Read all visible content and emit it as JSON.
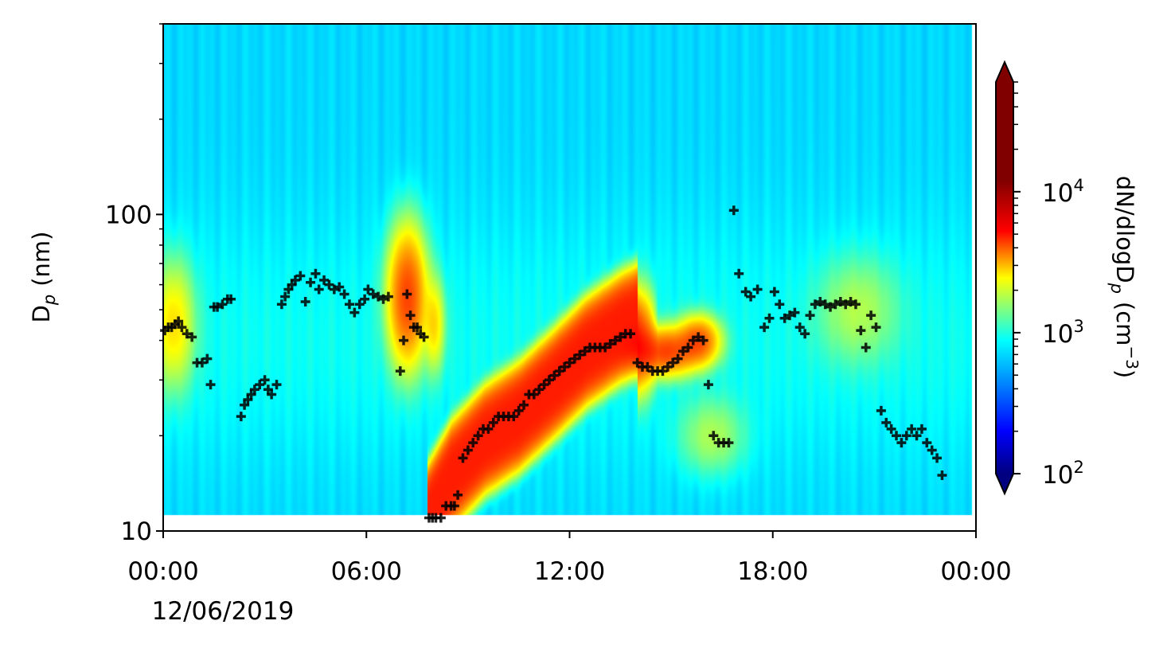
{
  "chart_data": {
    "type": "heatmap",
    "title": "",
    "xlabel": "",
    "ylabel": "D",
    "ylabel_sub": "p",
    "ylabel_unit": "(nm)",
    "y_scale": "log",
    "ylim": [
      10,
      400
    ],
    "xlim": [
      "2019-06-12T00:00",
      "2019-06-13T00:00"
    ],
    "x_ticks": [
      {
        "value": "2019-06-12T00:00",
        "label": "00:00"
      },
      {
        "value": "2019-06-12T06:00",
        "label": "06:00"
      },
      {
        "value": "2019-06-12T12:00",
        "label": "12:00"
      },
      {
        "value": "2019-06-12T18:00",
        "label": "18:00"
      },
      {
        "value": "2019-06-13T00:00",
        "label": "00:00"
      }
    ],
    "x_date_label": "12/06/2019",
    "y_ticks": [
      10,
      100
    ],
    "y_tick_labels": [
      "10",
      "100"
    ],
    "colorbar": {
      "label_main": "dN/dlogD",
      "label_sub": "p",
      "label_unit": "(cm",
      "label_exp": "−3",
      "label_close": ")",
      "scale": "log",
      "range": [
        100,
        60000
      ],
      "extend": "both",
      "colormap": "jet",
      "ticks": [
        {
          "value": 100,
          "base": "10",
          "exp": "2"
        },
        {
          "value": 1000,
          "base": "10",
          "exp": "3"
        },
        {
          "value": 10000,
          "base": "10",
          "exp": "4"
        }
      ]
    },
    "features": [
      {
        "desc": "background",
        "level": 1300
      },
      {
        "t": 0.3,
        "dp": 45,
        "st": 0.5,
        "sd": 0.16,
        "level": 9000
      },
      {
        "t": 7.2,
        "dp": 55,
        "st": 0.45,
        "sd": 0.17,
        "level": 30000
      },
      {
        "t": 8.0,
        "dp": 45,
        "st": 0.25,
        "sd": 0.12,
        "level": 9000
      },
      {
        "t": 14.8,
        "dp": 37,
        "st": 0.8,
        "sd": 0.06,
        "level": 30000
      },
      {
        "t": 15.8,
        "dp": 40,
        "st": 0.5,
        "sd": 0.06,
        "level": 25000
      },
      {
        "t": 20.5,
        "dp": 50,
        "st": 1.0,
        "sd": 0.14,
        "level": 3500
      },
      {
        "t": 16.2,
        "dp": 20,
        "st": 0.8,
        "sd": 0.1,
        "level": 3500
      }
    ],
    "banana": {
      "ridge": [
        [
          7.8,
          11
        ],
        [
          8.5,
          15
        ],
        [
          9.5,
          19.5
        ],
        [
          10.5,
          23
        ],
        [
          11.5,
          29
        ],
        [
          12.5,
          37
        ],
        [
          13.5,
          44
        ],
        [
          14,
          47
        ]
      ],
      "level": 40000
    },
    "mode_diameter_points": {
      "marker": "+",
      "color": "#000000",
      "x_unit": "hours since 2019-06-12 00:00",
      "y_unit": "nm",
      "x": [
        0.05,
        0.15,
        0.25,
        0.35,
        0.45,
        0.55,
        0.7,
        0.85,
        1.0,
        1.15,
        1.3,
        1.4,
        1.5,
        1.6,
        1.75,
        1.9,
        2.0,
        2.3,
        2.4,
        2.5,
        2.6,
        2.7,
        2.85,
        3.0,
        3.1,
        3.2,
        3.35,
        3.5,
        3.6,
        3.7,
        3.8,
        3.9,
        4.05,
        4.2,
        4.35,
        4.5,
        4.6,
        4.75,
        4.9,
        5.05,
        5.2,
        5.35,
        5.5,
        5.65,
        5.8,
        5.95,
        6.05,
        6.2,
        6.35,
        6.5,
        6.65,
        7.0,
        7.1,
        7.2,
        7.3,
        7.4,
        7.5,
        7.6,
        7.7,
        7.85,
        7.95,
        8.05,
        8.2,
        8.35,
        8.5,
        8.6,
        8.7,
        8.85,
        9.0,
        9.15,
        9.3,
        9.45,
        9.6,
        9.75,
        9.9,
        10.05,
        10.2,
        10.35,
        10.5,
        10.65,
        10.8,
        10.95,
        11.1,
        11.25,
        11.4,
        11.55,
        11.7,
        11.85,
        12.0,
        12.15,
        12.3,
        12.45,
        12.6,
        12.75,
        12.9,
        13.05,
        13.2,
        13.35,
        13.5,
        13.65,
        13.8,
        14.0,
        14.15,
        14.3,
        14.45,
        14.6,
        14.75,
        14.9,
        15.05,
        15.2,
        15.35,
        15.5,
        15.65,
        15.8,
        15.95,
        16.1,
        16.25,
        16.4,
        16.55,
        16.7,
        16.85,
        17.0,
        17.2,
        17.35,
        17.55,
        17.75,
        17.9,
        18.05,
        18.2,
        18.35,
        18.5,
        18.65,
        18.8,
        18.95,
        19.1,
        19.25,
        19.4,
        19.55,
        19.7,
        19.85,
        20.0,
        20.15,
        20.3,
        20.45,
        20.6,
        20.75,
        20.9,
        21.05,
        21.2,
        21.35,
        21.5,
        21.65,
        21.8,
        21.95,
        22.1,
        22.25,
        22.4,
        22.55,
        22.7,
        22.85,
        23.0,
        23.15,
        23.3,
        23.45,
        23.6,
        23.8
      ],
      "y": [
        43,
        44,
        44,
        45,
        46,
        44,
        42,
        41,
        34,
        34,
        35,
        29,
        51,
        51,
        52,
        54,
        54,
        23,
        25,
        26,
        27,
        28,
        29,
        30,
        28,
        27,
        29,
        52,
        55,
        58,
        60,
        62,
        64,
        53,
        61,
        65,
        58,
        62,
        60,
        58,
        59,
        56,
        52,
        49,
        52,
        54,
        58,
        56,
        55,
        54,
        55,
        32,
        40,
        56,
        48,
        44,
        44,
        42,
        41,
        11,
        11,
        11,
        11,
        12,
        12,
        12,
        13,
        17,
        18,
        19,
        20,
        21,
        21,
        22,
        23,
        23,
        23,
        23,
        24,
        25,
        27,
        27,
        28,
        29,
        30,
        31,
        32,
        33,
        34,
        35,
        36,
        37,
        38,
        38,
        38,
        38,
        39,
        40,
        41,
        42,
        42,
        34,
        33,
        33,
        32,
        32,
        32,
        33,
        34,
        35,
        37,
        38,
        40,
        41,
        40,
        29,
        20,
        19,
        19,
        19,
        103,
        65,
        57,
        55,
        58,
        44,
        47,
        57,
        52,
        47,
        48,
        49,
        44,
        42,
        48,
        52,
        53,
        52,
        51,
        52,
        53,
        52,
        53,
        52,
        43,
        38,
        48,
        44,
        24,
        22,
        21,
        20,
        19,
        20,
        21,
        20,
        21,
        19,
        18,
        17,
        15
      ]
    }
  }
}
